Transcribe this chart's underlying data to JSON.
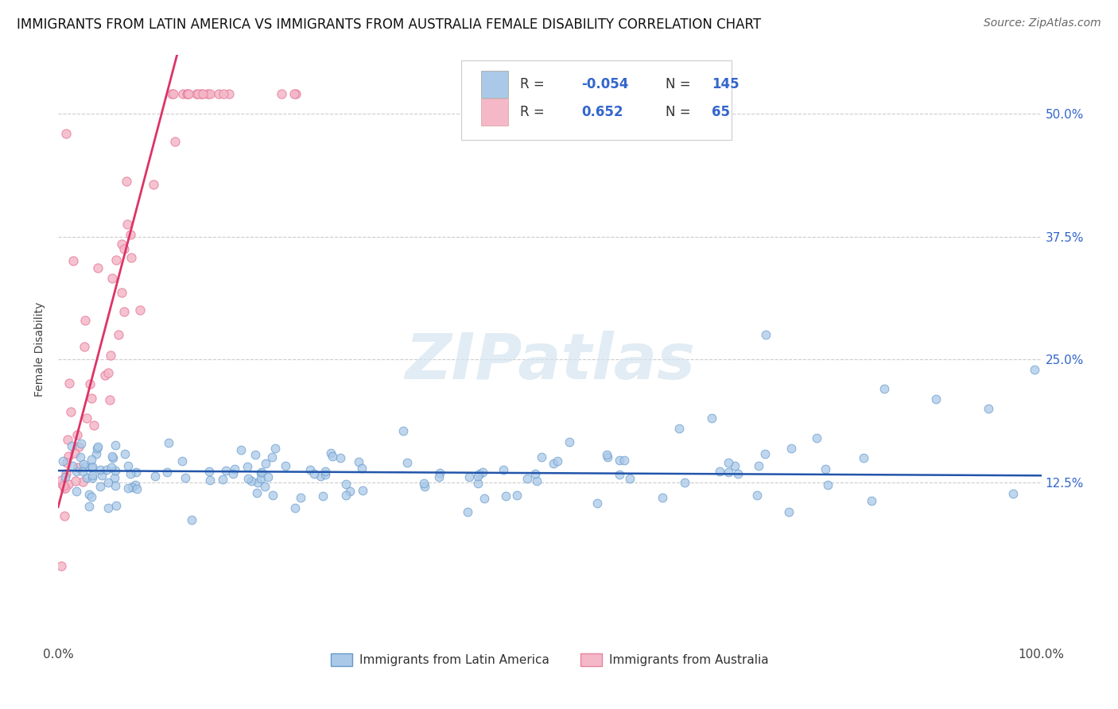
{
  "title": "IMMIGRANTS FROM LATIN AMERICA VS IMMIGRANTS FROM AUSTRALIA FEMALE DISABILITY CORRELATION CHART",
  "source": "Source: ZipAtlas.com",
  "ylabel": "Female Disability",
  "yticks": [
    0.125,
    0.25,
    0.375,
    0.5
  ],
  "ytick_labels": [
    "12.5%",
    "25.0%",
    "37.5%",
    "50.0%"
  ],
  "xlim": [
    0.0,
    1.0
  ],
  "ylim": [
    -0.04,
    0.56
  ],
  "legend_R1": "-0.054",
  "legend_N1": "145",
  "legend_R2": "0.652",
  "legend_N2": "65",
  "blue_color": "#aac9e8",
  "pink_color": "#f4b8c8",
  "blue_edge_color": "#6699cc",
  "pink_edge_color": "#e880a0",
  "blue_line_color": "#2255aa",
  "pink_line_color": "#dd3366",
  "watermark": "ZIPatlas",
  "watermark_color": "#dddddd",
  "grid_color": "#cccccc",
  "background_color": "#ffffff",
  "title_fontsize": 12,
  "source_fontsize": 10,
  "axis_label_fontsize": 10,
  "tick_fontsize": 11,
  "legend_text_color": "#333333",
  "legend_value_color": "#3366cc",
  "right_tick_color": "#3366cc"
}
